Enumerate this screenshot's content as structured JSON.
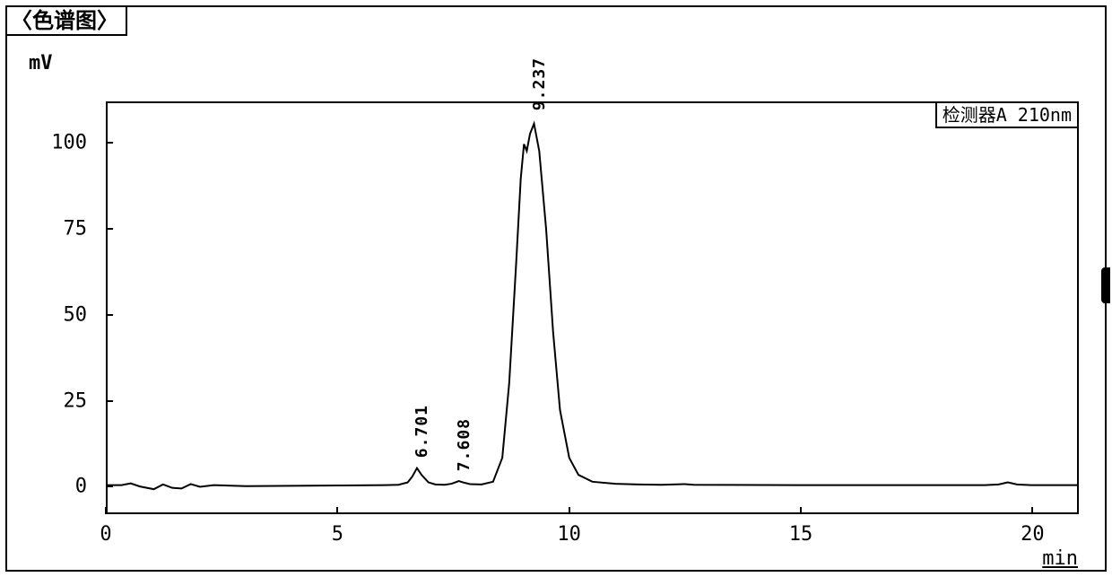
{
  "frame": {
    "title": "〈色谱图〉",
    "y_unit_label": "mV",
    "x_unit_label": "min",
    "legend_text": "检测器A 210nm"
  },
  "chart": {
    "type": "line",
    "background_color": "#ffffff",
    "line_color": "#000000",
    "line_width": 2,
    "border_color": "#000000",
    "xlim": [
      0,
      21
    ],
    "ylim": [
      -8,
      112
    ],
    "xticks": [
      0,
      5,
      10,
      15,
      20
    ],
    "yticks": [
      0,
      25,
      50,
      75,
      100
    ],
    "xtick_labels": [
      "0",
      "5",
      "10",
      "15",
      "20"
    ],
    "ytick_labels": [
      "0",
      "25",
      "50",
      "75",
      "100"
    ],
    "tick_fontsize": 22,
    "peaks": [
      {
        "rt": 6.701,
        "height": 5,
        "label": "6.701"
      },
      {
        "rt": 7.608,
        "height": 1.2,
        "label": "7.608"
      },
      {
        "rt": 9.237,
        "height": 106,
        "label": "9.237"
      }
    ],
    "peak_label_fontsize": 18,
    "trace": [
      {
        "x": 0.0,
        "y": 0
      },
      {
        "x": 0.3,
        "y": 0
      },
      {
        "x": 0.5,
        "y": 0.5
      },
      {
        "x": 0.7,
        "y": -0.4
      },
      {
        "x": 1.0,
        "y": -1.2
      },
      {
        "x": 1.2,
        "y": 0.2
      },
      {
        "x": 1.4,
        "y": -0.8
      },
      {
        "x": 1.6,
        "y": -1.0
      },
      {
        "x": 1.8,
        "y": 0.3
      },
      {
        "x": 2.0,
        "y": -0.5
      },
      {
        "x": 2.3,
        "y": 0
      },
      {
        "x": 3.0,
        "y": -0.3
      },
      {
        "x": 4.0,
        "y": -0.2
      },
      {
        "x": 5.0,
        "y": -0.1
      },
      {
        "x": 6.0,
        "y": 0
      },
      {
        "x": 6.3,
        "y": 0.1
      },
      {
        "x": 6.5,
        "y": 0.8
      },
      {
        "x": 6.6,
        "y": 2.5
      },
      {
        "x": 6.701,
        "y": 5.0
      },
      {
        "x": 6.8,
        "y": 3.0
      },
      {
        "x": 6.95,
        "y": 0.8
      },
      {
        "x": 7.1,
        "y": 0.2
      },
      {
        "x": 7.3,
        "y": 0.1
      },
      {
        "x": 7.45,
        "y": 0.4
      },
      {
        "x": 7.55,
        "y": 0.9
      },
      {
        "x": 7.608,
        "y": 1.2
      },
      {
        "x": 7.7,
        "y": 0.8
      },
      {
        "x": 7.85,
        "y": 0.3
      },
      {
        "x": 8.1,
        "y": 0.2
      },
      {
        "x": 8.35,
        "y": 1.0
      },
      {
        "x": 8.55,
        "y": 8
      },
      {
        "x": 8.7,
        "y": 30
      },
      {
        "x": 8.85,
        "y": 65
      },
      {
        "x": 8.95,
        "y": 90
      },
      {
        "x": 9.02,
        "y": 100
      },
      {
        "x": 9.08,
        "y": 98
      },
      {
        "x": 9.15,
        "y": 103
      },
      {
        "x": 9.237,
        "y": 106
      },
      {
        "x": 9.35,
        "y": 98
      },
      {
        "x": 9.5,
        "y": 75
      },
      {
        "x": 9.65,
        "y": 45
      },
      {
        "x": 9.8,
        "y": 22
      },
      {
        "x": 10.0,
        "y": 8
      },
      {
        "x": 10.2,
        "y": 3
      },
      {
        "x": 10.5,
        "y": 1
      },
      {
        "x": 11.0,
        "y": 0.4
      },
      {
        "x": 11.5,
        "y": 0.2
      },
      {
        "x": 12.0,
        "y": 0.1
      },
      {
        "x": 12.5,
        "y": 0.3
      },
      {
        "x": 12.7,
        "y": 0.1
      },
      {
        "x": 13.5,
        "y": 0.05
      },
      {
        "x": 15.0,
        "y": 0
      },
      {
        "x": 17.0,
        "y": 0
      },
      {
        "x": 19.0,
        "y": 0
      },
      {
        "x": 19.3,
        "y": 0.2
      },
      {
        "x": 19.5,
        "y": 0.8
      },
      {
        "x": 19.7,
        "y": 0.2
      },
      {
        "x": 20.0,
        "y": 0
      },
      {
        "x": 21.0,
        "y": 0
      }
    ]
  }
}
